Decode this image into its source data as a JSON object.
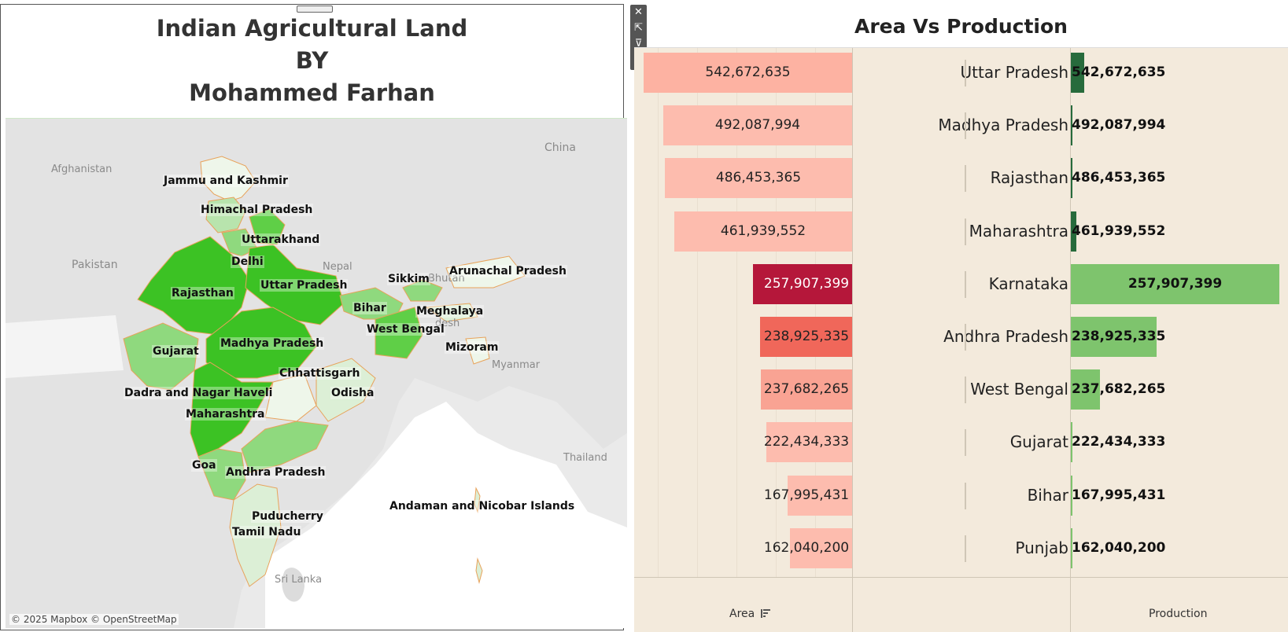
{
  "dashboard": {
    "title_lines": [
      "Indian Agricultural Land",
      "BY",
      "Mohammed Farhan"
    ]
  },
  "map": {
    "attribution": "© 2025 Mapbox © OpenStreetMap",
    "colors": {
      "high": "#3cc224",
      "mid_high": "#5fcf47",
      "mid": "#8fd97e",
      "low": "#b8e4ad",
      "very_low": "#dcefd6",
      "border": "#e8a25a"
    },
    "state_labels": [
      "Jammu and Kashmir",
      "Himachal Pradesh",
      "Uttarakhand",
      "Delhi",
      "Rajasthan",
      "Uttar Pradesh",
      "Sikkim",
      "Arunachal Pradesh",
      "Bihar",
      "Meghalaya",
      "West Bengal",
      "Gujarat",
      "Madhya Pradesh",
      "Mizoram",
      "Chhattisgarh",
      "Dadra and Nagar Haveli",
      "Odisha",
      "Maharashtra",
      "Goa",
      "Andhra Pradesh",
      "Andaman and Nicobar Islands",
      "Puducherry",
      "Tamil Nadu"
    ],
    "basemap_labels": [
      "Afghanistan",
      "China",
      "Pakistan",
      "Nepal",
      "Bhutan",
      "desh",
      "Myanmar",
      "Thailand",
      "Sri Lanka"
    ]
  },
  "toolbar": {
    "icons": [
      "close-icon",
      "popout-icon",
      "filter-icon",
      "more-options-icon"
    ],
    "glyphs": [
      "✕",
      "⇱",
      "⊽",
      "▾"
    ]
  },
  "chart": {
    "title": "Area Vs Production",
    "area_axis_label": "Area",
    "production_axis_label": "Production",
    "sort_icon": "sort-descending-icon"
  },
  "chart_data": {
    "type": "bar",
    "title": "Area Vs Production",
    "categories": [
      "Uttar Pradesh",
      "Madhya Pradesh",
      "Rajasthan",
      "Maharashtra",
      "Karnataka",
      "Andhra Pradesh",
      "West Bengal",
      "Gujarat",
      "Bihar",
      "Punjab"
    ],
    "series": [
      {
        "name": "Area",
        "values": [
          542672635,
          492087994,
          486453365,
          461939552,
          257907399,
          238925335,
          237682265,
          222434333,
          167995431,
          162040200
        ],
        "labels": [
          "542,672,635",
          "492,087,994",
          "486,453,365",
          "461,939,552",
          "257,907,399",
          "238,925,335",
          "237,682,265",
          "222,434,333",
          "167,995,431",
          "162,040,200"
        ],
        "colors": [
          "#fdb2a2",
          "#fdbcae",
          "#fdbcae",
          "#fdbcae",
          "#b5173a",
          "#f0675a",
          "#f9a393",
          "#fdbcae",
          "#fdbcae",
          "#fdbcae"
        ]
      },
      {
        "name": "Production",
        "values": [
          542672635,
          492087994,
          486453365,
          461939552,
          257907399,
          238925335,
          237682265,
          222434333,
          167995431,
          162040200
        ],
        "display_fraction": [
          0.065,
          0.008,
          0.006,
          0.025,
          1.0,
          0.41,
          0.14,
          0.008,
          0.006,
          0.006
        ],
        "labels": [
          "542,672,635",
          "492,087,994",
          "486,453,365",
          "461,939,552",
          "257,907,399",
          "238,925,335",
          "237,682,265",
          "222,434,333",
          "167,995,431",
          "162,040,200"
        ],
        "colors": [
          "#276b3c",
          "#276b3c",
          "#276b3c",
          "#276b3c",
          "#7ec46d",
          "#7ec46d",
          "#7ec46d",
          "#7ec46d",
          "#7ec46d",
          "#7ec46d"
        ]
      }
    ],
    "xlabel": "Area",
    "ylabel": "Production"
  }
}
